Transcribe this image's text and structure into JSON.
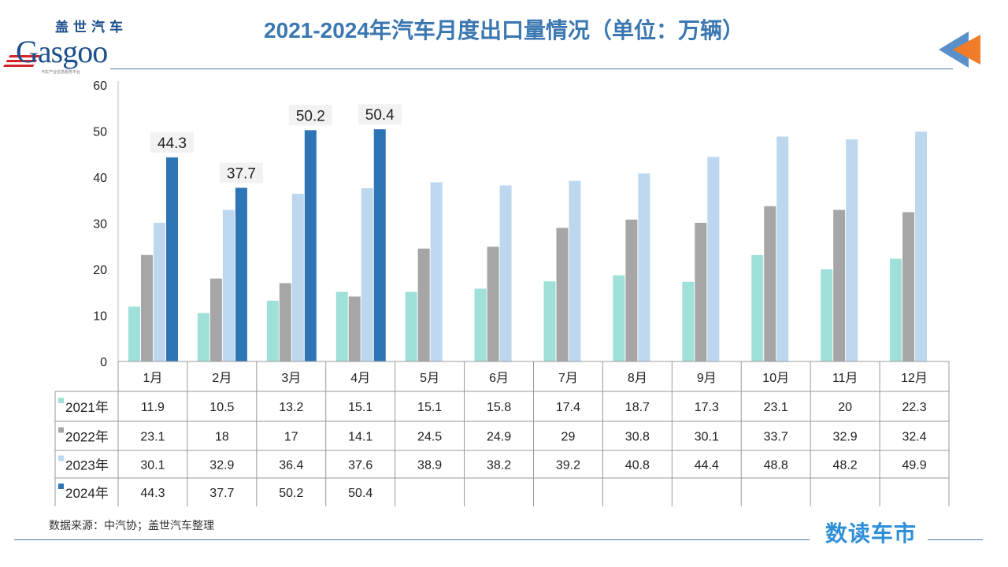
{
  "logo": {
    "cn": "盖世汽车",
    "en": "Gasgoo",
    "sub": "汽车产业信息服务平台"
  },
  "title": "2021-2024年汽车月度出口量情况（单位：万辆）",
  "source": "数据来源：中汽协；盖世汽车整理",
  "brand": "数读车市",
  "chart_data": {
    "type": "bar",
    "title": "2021-2024年汽车月度出口量情况（单位：万辆）",
    "categories": [
      "1月",
      "2月",
      "3月",
      "4月",
      "5月",
      "6月",
      "7月",
      "8月",
      "9月",
      "10月",
      "11月",
      "12月"
    ],
    "ylim": [
      0,
      60
    ],
    "yticks": [
      0,
      10,
      20,
      30,
      40,
      50,
      60
    ],
    "grid": false,
    "legend": "data-table",
    "series": [
      {
        "name": "2021年",
        "color": "#9fe0d8",
        "values": [
          11.9,
          10.5,
          13.2,
          15.1,
          15.1,
          15.8,
          17.4,
          18.7,
          17.3,
          23.1,
          20,
          22.3
        ]
      },
      {
        "name": "2022年",
        "color": "#a6a6a6",
        "values": [
          23.1,
          18,
          17,
          14.1,
          24.5,
          24.9,
          29,
          30.8,
          30.1,
          33.7,
          32.9,
          32.4
        ]
      },
      {
        "name": "2023年",
        "color": "#bdd7ee",
        "values": [
          30.1,
          32.9,
          36.4,
          37.6,
          38.9,
          38.2,
          39.2,
          40.8,
          44.4,
          48.8,
          48.2,
          49.9
        ]
      },
      {
        "name": "2024年",
        "color": "#2e75b6",
        "values": [
          44.3,
          37.7,
          50.2,
          50.4,
          null,
          null,
          null,
          null,
          null,
          null,
          null,
          null
        ],
        "labels": true
      }
    ]
  }
}
